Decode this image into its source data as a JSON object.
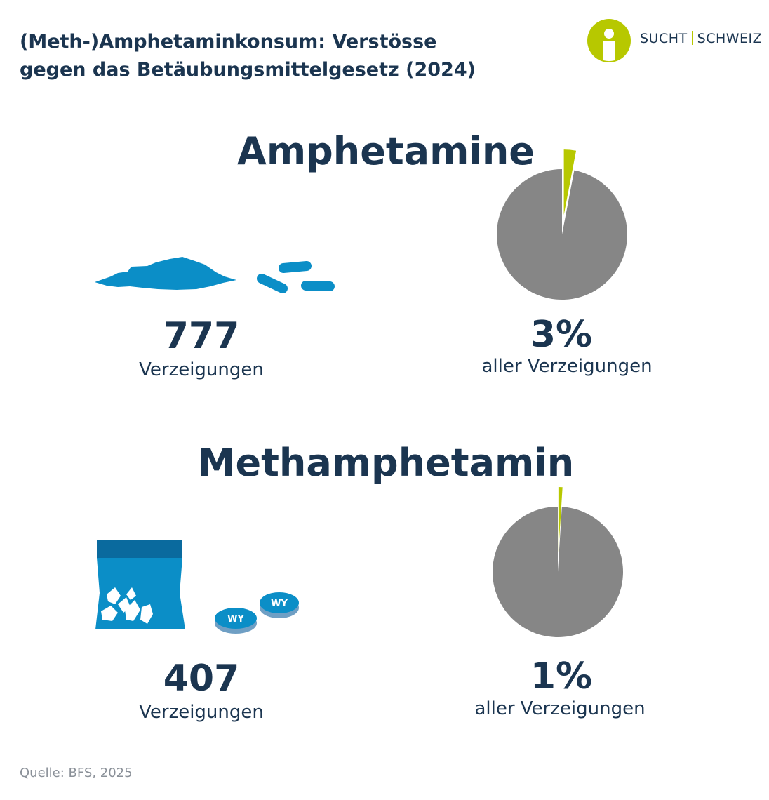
{
  "header": {
    "title_line1": "(Meth-)Amphetaminkonsum: Verstösse",
    "title_line2": "gegen das Betäubungsmittelgesetz (2024)"
  },
  "logo": {
    "left": "SUCHT",
    "right": "SCHWEIZ"
  },
  "colors": {
    "navy": "#1b3550",
    "blue": "#0b8ec7",
    "dark_blue": "#0a6a9e",
    "pie_gray": "#868686",
    "pie_highlight": "#b7c800"
  },
  "sections": [
    {
      "heading": "Amphetamine",
      "count": "777",
      "count_label": "Verzeigungen",
      "share_text": "3%",
      "share_label": "aller Verzeigungen",
      "icon": "powder-and-capsules-icon"
    },
    {
      "heading": "Methamphetamin",
      "count": "407",
      "count_label": "Verzeigungen",
      "share_text": "1%",
      "share_label": "aller Verzeigungen",
      "icon": "crystal-bag-and-pills-icon",
      "pill_text": "WY"
    }
  ],
  "chart_data": [
    {
      "type": "pie",
      "title": "Amphetamine",
      "series": [
        {
          "label": "Amphetamine",
          "value": 3,
          "color": "#b7c800"
        },
        {
          "value": 97,
          "color": "#868686"
        }
      ]
    },
    {
      "type": "pie",
      "title": "Methamphetamin",
      "series": [
        {
          "label": "Methamphetamin",
          "value": 1,
          "color": "#b7c800"
        },
        {
          "value": 99,
          "color": "#868686"
        }
      ]
    }
  ],
  "source": "Quelle: BFS, 2025"
}
